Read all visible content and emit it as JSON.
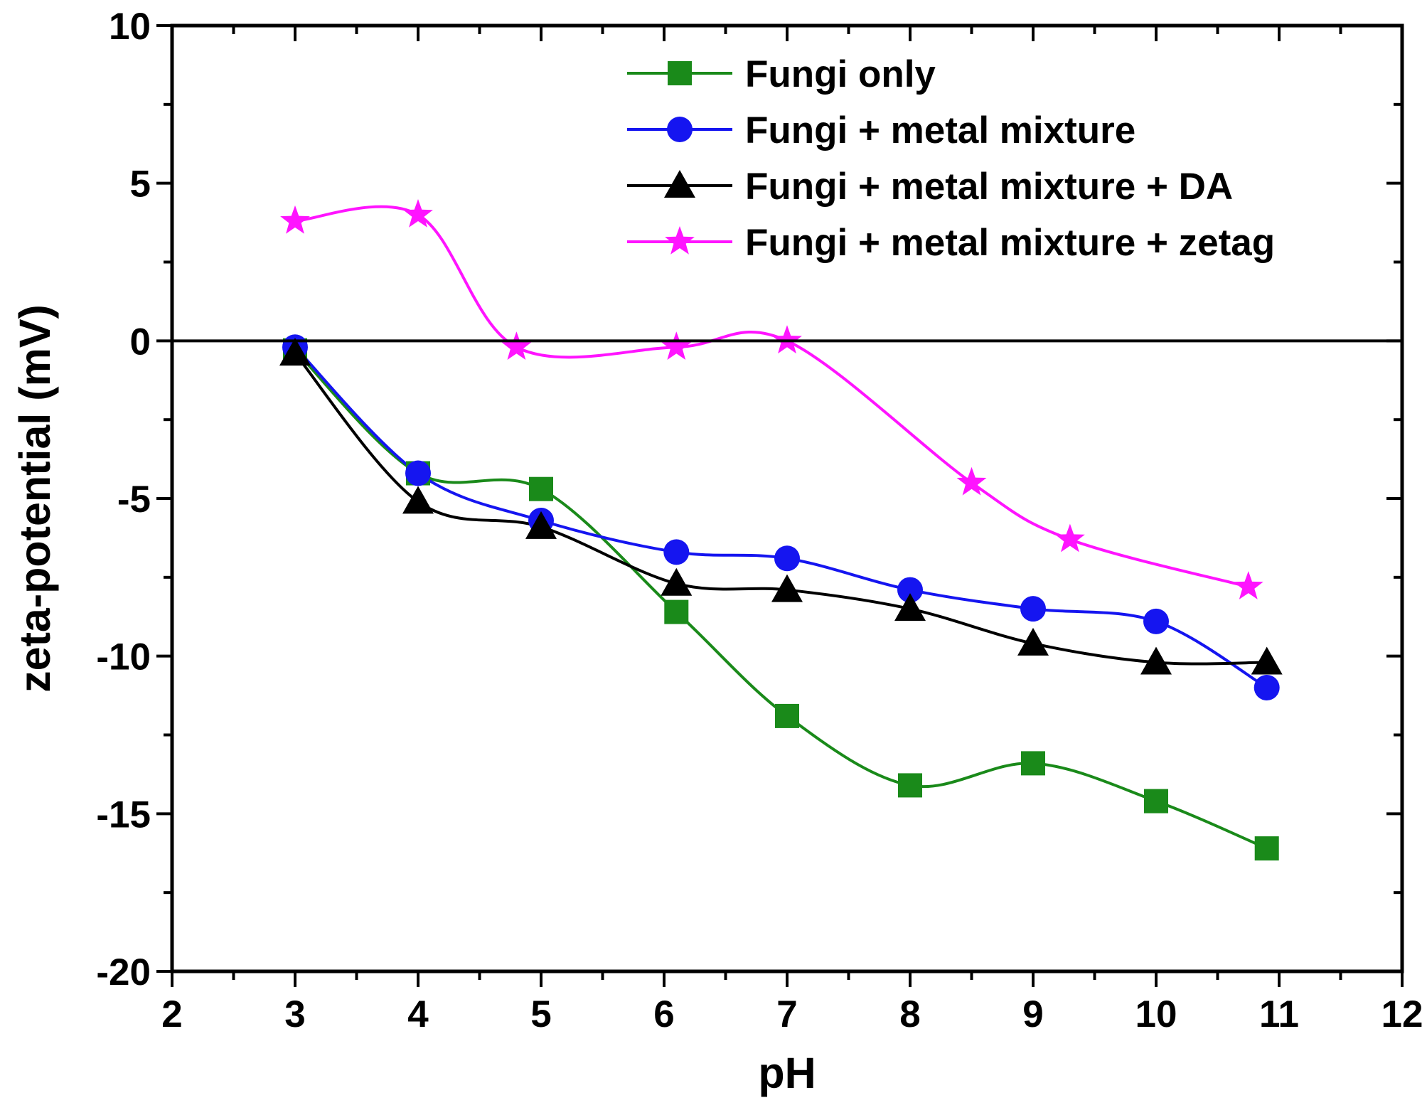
{
  "chart_data": {
    "type": "line",
    "title": "",
    "xlabel": "pH",
    "ylabel": "zeta-potential (mV)",
    "xlim": [
      2,
      12
    ],
    "ylim": [
      -20,
      10
    ],
    "xticks": [
      2,
      3,
      4,
      5,
      6,
      7,
      8,
      9,
      10,
      11,
      12
    ],
    "yticks": [
      -20,
      -15,
      -10,
      -5,
      0,
      5,
      10
    ],
    "xtick_labels": [
      "2",
      "3",
      "4",
      "5",
      "6",
      "7",
      "8",
      "9",
      "10",
      "11",
      "12"
    ],
    "ytick_labels": [
      "-20",
      "-15",
      "-10",
      "-5",
      "0",
      "5",
      "10"
    ],
    "zero_line": true,
    "grid": false,
    "legend_position": "top-right",
    "series": [
      {
        "name": "Fungi only",
        "color": "#1a8a1a",
        "marker": "square",
        "x": [
          3,
          4,
          5,
          6.1,
          7,
          8,
          9,
          10,
          10.9
        ],
        "y": [
          -0.3,
          -4.2,
          -4.7,
          -8.6,
          -11.9,
          -14.1,
          -13.4,
          -14.6,
          -16.1
        ]
      },
      {
        "name": "Fungi + metal mixture",
        "color": "#1515f0",
        "marker": "circle",
        "x": [
          3,
          4,
          5,
          6.1,
          7,
          8,
          9,
          10,
          10.9
        ],
        "y": [
          -0.2,
          -4.2,
          -5.7,
          -6.7,
          -6.9,
          -7.9,
          -8.5,
          -8.9,
          -11.0
        ]
      },
      {
        "name": "Fungi + metal mixture + DA",
        "color": "#000000",
        "marker": "triangle",
        "x": [
          3,
          4,
          5,
          6.1,
          7,
          8,
          9,
          10,
          10.9
        ],
        "y": [
          -0.4,
          -5.1,
          -5.9,
          -7.7,
          -7.9,
          -8.5,
          -9.6,
          -10.2,
          -10.2
        ]
      },
      {
        "name": "Fungi + metal mixture + zetag",
        "color": "#ff14ff",
        "marker": "star",
        "x": [
          3,
          4,
          4.8,
          6.1,
          7,
          8.5,
          9.3,
          10.75
        ],
        "y": [
          3.8,
          4.0,
          -0.2,
          -0.2,
          0.0,
          -4.5,
          -6.3,
          -7.8
        ]
      }
    ]
  }
}
